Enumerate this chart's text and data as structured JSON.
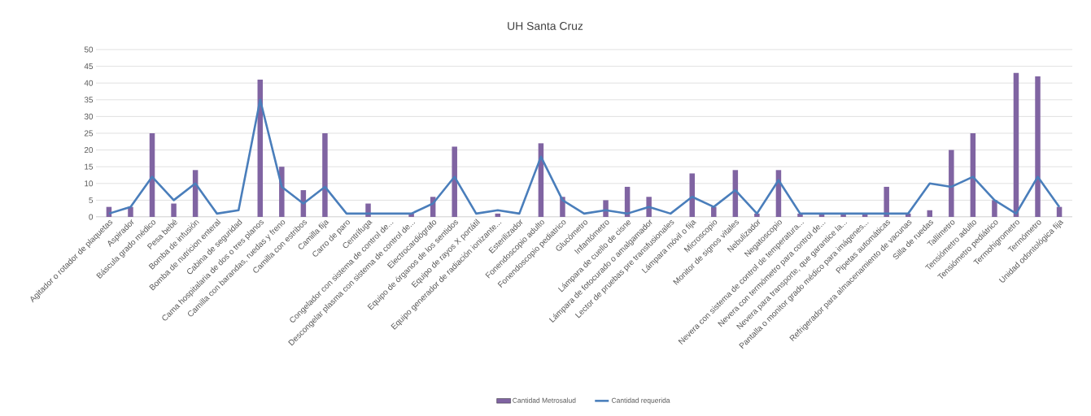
{
  "chart_data": {
    "type": "bar",
    "title": "UH Santa Cruz",
    "categories": [
      "Agitador o rotador de plaquetas",
      "Aspirador",
      "Báscula grado médico",
      "Pesa bebé",
      "Bomba de infusión",
      "Bomba de nutricion enteral",
      "Cabina de seguridad",
      "Cama hospitalaria de dos o tres planos",
      "Camilla con barandas, ruedas y freno",
      "Camilla con estribos",
      "Camilla fija",
      "Carro de paro",
      "Centrífuga",
      "Congelador  con sistema de control de...",
      "Descongelar plasma con sistema de control de...",
      "Electrocardiógrafo",
      "Equipo de órganos de los sentidos",
      "Equipo de rayos X portátil",
      "Equipo generador de radiación ionizante...",
      "Esterilizador",
      "Fonendoscopio adulto",
      "Fonendoscopio pediatrico",
      "Glucómetro",
      "Infantómetro",
      "Lámpara de cuello de cisne",
      "Lámpara de fotocurado o amalgamador",
      "Lector de pruebas pre transfusionales",
      "Lámpara móvil o fija",
      "Microscopio",
      "Monitor de signos vitales",
      "Nebulizador",
      "Negatoscopio",
      "Nevera con sistema de control de temperatura...",
      "Nevera con termómetro para control de...",
      "Nevera para transporte, que garantice la...",
      "Pantalla o monitor grado médico para imágenes...",
      "Pipetas automáticas",
      "Refrigerador  para almacenamiento de vacunas",
      "Silla de ruedas",
      "Tallímetro",
      "Tensiómetro adulto",
      "Tensiómetro pediátrico",
      "Termohigrometro",
      "Termómetro",
      "Unidad odontológica fija"
    ],
    "series": [
      {
        "name": "Cantidad Metrosalud",
        "color": "#8064a2",
        "values": [
          3,
          3,
          25,
          4,
          14,
          0,
          0,
          41,
          15,
          8,
          25,
          0,
          4,
          0,
          1,
          6,
          21,
          0,
          1,
          0,
          22,
          6,
          0,
          5,
          9,
          6,
          0,
          13,
          3,
          14,
          1,
          14,
          1,
          1,
          1,
          1,
          9,
          1,
          2,
          20,
          25,
          5,
          43,
          42,
          3
        ]
      },
      {
        "name": "Cantidad requerida",
        "type": "line",
        "color": "#4a7ebb",
        "values": [
          1,
          3,
          12,
          5,
          10,
          1,
          2,
          35,
          9,
          4,
          9,
          1,
          1,
          1,
          1,
          4,
          12,
          1,
          2,
          1,
          18,
          5,
          1,
          2,
          1,
          3,
          1,
          6,
          3,
          8,
          1,
          11,
          1,
          1,
          1,
          1,
          1,
          1,
          10,
          9,
          12,
          5,
          1,
          12,
          3
        ]
      }
    ],
    "ylim": [
      0,
      50
    ],
    "yticks": [
      0,
      5,
      10,
      15,
      20,
      25,
      30,
      35,
      40,
      45,
      50
    ],
    "grid": "y",
    "legend": "bottom"
  }
}
